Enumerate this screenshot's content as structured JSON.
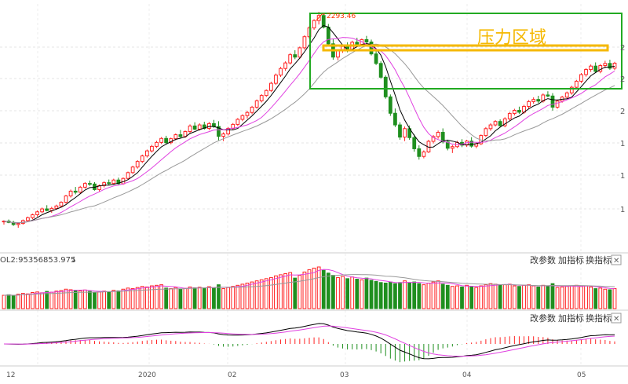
{
  "chart_data": [
    {
      "type": "candlestick",
      "panel": "price",
      "x": [
        "12",
        "2020",
        "02",
        "03",
        "04",
        "05"
      ],
      "annotations": {
        "high_label": "2293.46",
        "pressure_zone_label": "压力区域"
      },
      "y_tick_labels": [
        "2",
        "2",
        "2",
        "1",
        "1",
        "1"
      ],
      "candles": [
        [
          1500,
          1506,
          1490,
          1503
        ],
        [
          1503,
          1509,
          1495,
          1498
        ],
        [
          1498,
          1504,
          1485,
          1490
        ],
        [
          1490,
          1497,
          1478,
          1494
        ],
        [
          1494,
          1509,
          1490,
          1505
        ],
        [
          1505,
          1520,
          1500,
          1516
        ],
        [
          1516,
          1531,
          1510,
          1527
        ],
        [
          1527,
          1543,
          1520,
          1538
        ],
        [
          1538,
          1554,
          1533,
          1549
        ],
        [
          1549,
          1563,
          1540,
          1543
        ],
        [
          1543,
          1557,
          1534,
          1551
        ],
        [
          1551,
          1565,
          1546,
          1560
        ],
        [
          1560,
          1578,
          1555,
          1574
        ],
        [
          1574,
          1602,
          1569,
          1598
        ],
        [
          1598,
          1622,
          1592,
          1616
        ],
        [
          1616,
          1632,
          1604,
          1612
        ],
        [
          1612,
          1636,
          1606,
          1631
        ],
        [
          1631,
          1650,
          1625,
          1645
        ],
        [
          1645,
          1656,
          1636,
          1643
        ],
        [
          1643,
          1650,
          1618,
          1622
        ],
        [
          1622,
          1641,
          1615,
          1637
        ],
        [
          1637,
          1653,
          1630,
          1648
        ],
        [
          1648,
          1660,
          1638,
          1645
        ],
        [
          1645,
          1663,
          1640,
          1658
        ],
        [
          1658,
          1667,
          1640,
          1644
        ],
        [
          1644,
          1668,
          1640,
          1664
        ],
        [
          1664,
          1690,
          1660,
          1686
        ],
        [
          1686,
          1712,
          1681,
          1707
        ],
        [
          1707,
          1733,
          1701,
          1728
        ],
        [
          1728,
          1754,
          1722,
          1749
        ],
        [
          1749,
          1773,
          1743,
          1768
        ],
        [
          1768,
          1791,
          1762,
          1785
        ],
        [
          1785,
          1806,
          1779,
          1800
        ],
        [
          1800,
          1820,
          1794,
          1815
        ],
        [
          1815,
          1825,
          1795,
          1799
        ],
        [
          1799,
          1818,
          1793,
          1814
        ],
        [
          1814,
          1834,
          1808,
          1829
        ],
        [
          1829,
          1847,
          1816,
          1822
        ],
        [
          1822,
          1845,
          1817,
          1841
        ],
        [
          1841,
          1868,
          1835,
          1862
        ],
        [
          1862,
          1876,
          1846,
          1850
        ],
        [
          1850,
          1872,
          1845,
          1866
        ],
        [
          1866,
          1878,
          1848,
          1853
        ],
        [
          1853,
          1877,
          1846,
          1871
        ],
        [
          1871,
          1885,
          1855,
          1860
        ],
        [
          1860,
          1880,
          1808,
          1823
        ],
        [
          1823,
          1838,
          1805,
          1832
        ],
        [
          1832,
          1858,
          1826,
          1853
        ],
        [
          1853,
          1873,
          1847,
          1868
        ],
        [
          1868,
          1892,
          1862,
          1887
        ],
        [
          1887,
          1906,
          1880,
          1901
        ],
        [
          1901,
          1919,
          1890,
          1913
        ],
        [
          1913,
          1938,
          1906,
          1933
        ],
        [
          1933,
          1962,
          1927,
          1957
        ],
        [
          1957,
          1982,
          1951,
          1977
        ],
        [
          1977,
          2000,
          1972,
          1996
        ],
        [
          1996,
          2029,
          1990,
          2023
        ],
        [
          2023,
          2060,
          2017,
          2054
        ],
        [
          2054,
          2085,
          2047,
          2079
        ],
        [
          2079,
          2106,
          2070,
          2100
        ],
        [
          2100,
          2137,
          2094,
          2131
        ],
        [
          2131,
          2148,
          2114,
          2122
        ],
        [
          2122,
          2162,
          2115,
          2157
        ],
        [
          2157,
          2204,
          2150,
          2199
        ],
        [
          2199,
          2238,
          2192,
          2232
        ],
        [
          2232,
          2265,
          2225,
          2260
        ],
        [
          2260,
          2293,
          2245,
          2279
        ],
        [
          2279,
          2288,
          2230,
          2235
        ],
        [
          2235,
          2247,
          2165,
          2172
        ],
        [
          2172,
          2190,
          2112,
          2122
        ],
        [
          2122,
          2152,
          2110,
          2145
        ],
        [
          2145,
          2168,
          2138,
          2162
        ],
        [
          2162,
          2178,
          2140,
          2150
        ],
        [
          2150,
          2184,
          2144,
          2178
        ],
        [
          2178,
          2195,
          2160,
          2170
        ],
        [
          2170,
          2192,
          2162,
          2188
        ],
        [
          2188,
          2202,
          2170,
          2179
        ],
        [
          2179,
          2188,
          2128,
          2134
        ],
        [
          2134,
          2146,
          2092,
          2098
        ],
        [
          2098,
          2106,
          2040,
          2046
        ],
        [
          2046,
          2053,
          1965,
          1972
        ],
        [
          1972,
          1981,
          1900,
          1910
        ],
        [
          1910,
          1928,
          1858,
          1866
        ],
        [
          1866,
          1876,
          1810,
          1820
        ],
        [
          1820,
          1860,
          1805,
          1852
        ],
        [
          1852,
          1864,
          1810,
          1818
        ],
        [
          1818,
          1830,
          1765,
          1776
        ],
        [
          1776,
          1789,
          1735,
          1747
        ],
        [
          1747,
          1770,
          1740,
          1764
        ],
        [
          1764,
          1810,
          1760,
          1804
        ],
        [
          1804,
          1828,
          1796,
          1822
        ],
        [
          1822,
          1845,
          1814,
          1838
        ],
        [
          1838,
          1853,
          1796,
          1802
        ],
        [
          1802,
          1808,
          1770,
          1778
        ],
        [
          1778,
          1790,
          1760,
          1784
        ],
        [
          1784,
          1806,
          1779,
          1800
        ],
        [
          1800,
          1812,
          1782,
          1790
        ],
        [
          1790,
          1810,
          1783,
          1805
        ],
        [
          1805,
          1820,
          1780,
          1786
        ],
        [
          1786,
          1800,
          1778,
          1795
        ],
        [
          1795,
          1830,
          1790,
          1826
        ],
        [
          1826,
          1858,
          1820,
          1852
        ],
        [
          1852,
          1872,
          1844,
          1866
        ],
        [
          1866,
          1884,
          1860,
          1879
        ],
        [
          1879,
          1887,
          1858,
          1863
        ],
        [
          1863,
          1895,
          1857,
          1889
        ],
        [
          1889,
          1915,
          1882,
          1909
        ],
        [
          1909,
          1927,
          1902,
          1921
        ],
        [
          1921,
          1935,
          1908,
          1914
        ],
        [
          1914,
          1942,
          1908,
          1936
        ],
        [
          1936,
          1960,
          1928,
          1954
        ],
        [
          1954,
          1970,
          1946,
          1962
        ],
        [
          1962,
          1976,
          1948,
          1956
        ],
        [
          1956,
          1985,
          1950,
          1979
        ],
        [
          1979,
          1993,
          1970,
          1975
        ],
        [
          1975,
          1986,
          1920,
          1933
        ],
        [
          1933,
          1962,
          1927,
          1956
        ],
        [
          1956,
          1976,
          1950,
          1971
        ],
        [
          1971,
          1992,
          1964,
          1987
        ],
        [
          1987,
          2014,
          1980,
          2008
        ],
        [
          2008,
          2036,
          2001,
          2031
        ],
        [
          2031,
          2062,
          2024,
          2056
        ],
        [
          2056,
          2080,
          2048,
          2075
        ],
        [
          2075,
          2094,
          2066,
          2088
        ],
        [
          2088,
          2102,
          2062,
          2068
        ],
        [
          2068,
          2096,
          2061,
          2090
        ],
        [
          2090,
          2108,
          2080,
          2098
        ],
        [
          2098,
          2112,
          2074,
          2080
        ],
        [
          2080,
          2104,
          2073,
          2099
        ]
      ],
      "ma_series": [
        {
          "color": "#000000",
          "period": 5
        },
        {
          "color": "#e040e0",
          "period": 10
        },
        {
          "color": "#999999",
          "period": 20
        }
      ],
      "colors": {
        "up": "#ff2222",
        "down": "#1f8f1f",
        "zone_box": "#22aa22",
        "zone_line": "#f5b800",
        "zone_text": "#f5b800",
        "high_label": "#ff3300"
      }
    },
    {
      "type": "bar",
      "panel": "volume",
      "label": "OL2:95356853.975",
      "values": [
        48,
        50,
        46,
        52,
        55,
        53,
        58,
        60,
        57,
        62,
        59,
        63,
        65,
        70,
        68,
        66,
        64,
        67,
        62,
        58,
        60,
        63,
        61,
        66,
        64,
        70,
        74,
        72,
        76,
        80,
        78,
        82,
        84,
        86,
        74,
        72,
        76,
        70,
        73,
        78,
        75,
        77,
        72,
        79,
        74,
        86,
        72,
        76,
        80,
        84,
        88,
        92,
        96,
        100,
        104,
        108,
        112,
        118,
        122,
        126,
        130,
        110,
        120,
        132,
        140,
        146,
        150,
        138,
        128,
        120,
        112,
        116,
        108,
        114,
        106,
        104,
        110,
        102,
        98,
        94,
        92,
        96,
        90,
        94,
        100,
        92,
        96,
        90,
        86,
        92,
        96,
        100,
        88,
        84,
        80,
        82,
        78,
        84,
        80,
        76,
        82,
        86,
        90,
        88,
        84,
        86,
        88,
        82,
        80,
        84,
        86,
        82,
        78,
        84,
        80,
        90,
        76,
        78,
        80,
        82,
        84,
        80,
        82,
        78,
        72,
        74,
        70,
        68,
        72
      ],
      "line_series": [
        {
          "color": "#e040e0"
        },
        {
          "color": "#999999"
        }
      ]
    },
    {
      "type": "macd",
      "panel": "indicator",
      "line_series": [
        {
          "color": "#000000"
        },
        {
          "color": "#e040e0"
        }
      ]
    }
  ],
  "toolbar": {
    "change_params": "改参数",
    "add_indicator": "加指标",
    "swap_indicator": "换指标",
    "close": "✕",
    "sort_icon": "↓"
  }
}
